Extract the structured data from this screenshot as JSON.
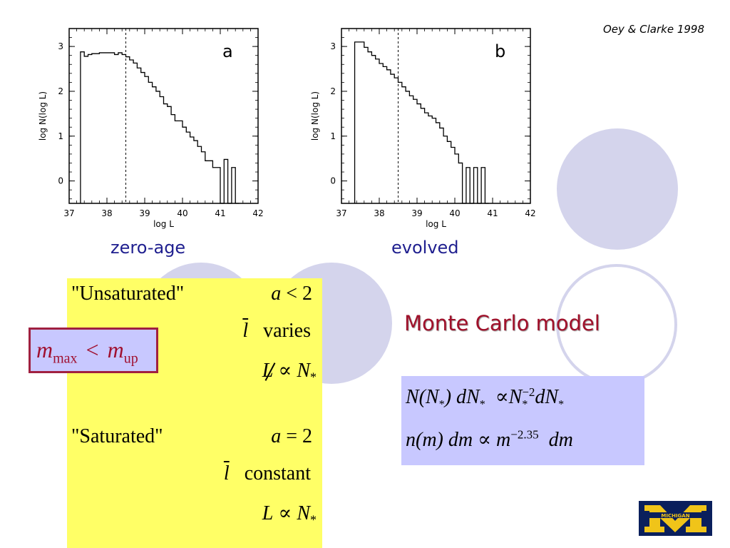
{
  "citation": "Oey & Clarke 1998",
  "chart_data": [
    {
      "type": "line",
      "panel_label": "a",
      "caption": "zero-age",
      "xlabel": "log L",
      "ylabel": "log N(log L)",
      "xlim": [
        37,
        42
      ],
      "ylim": [
        -0.5,
        3.4
      ],
      "xticks": [
        37,
        38,
        39,
        40,
        41,
        42
      ],
      "yticks": [
        0,
        1,
        2,
        3
      ],
      "grid": false,
      "reference_line_x": 38.5,
      "step_start": -0.5,
      "bins": [
        [
          37.3,
          2.88
        ],
        [
          37.4,
          2.78
        ],
        [
          37.5,
          2.82
        ],
        [
          37.6,
          2.84
        ],
        [
          37.7,
          2.84
        ],
        [
          37.8,
          2.86
        ],
        [
          37.9,
          2.86
        ],
        [
          38.0,
          2.86
        ],
        [
          38.1,
          2.86
        ],
        [
          38.2,
          2.82
        ],
        [
          38.3,
          2.86
        ],
        [
          38.4,
          2.82
        ],
        [
          38.5,
          2.77
        ],
        [
          38.6,
          2.7
        ],
        [
          38.7,
          2.63
        ],
        [
          38.8,
          2.52
        ],
        [
          38.9,
          2.42
        ],
        [
          39.0,
          2.33
        ],
        [
          39.1,
          2.2
        ],
        [
          39.2,
          2.1
        ],
        [
          39.3,
          2.0
        ],
        [
          39.4,
          1.88
        ],
        [
          39.5,
          1.72
        ],
        [
          39.6,
          1.66
        ],
        [
          39.7,
          1.48
        ],
        [
          39.8,
          1.34
        ],
        [
          39.9,
          1.34
        ],
        [
          40.0,
          1.2
        ],
        [
          40.1,
          1.09
        ],
        [
          40.2,
          0.98
        ],
        [
          40.3,
          0.9
        ],
        [
          40.4,
          0.77
        ],
        [
          40.5,
          0.65
        ],
        [
          40.6,
          0.45
        ],
        [
          40.7,
          0.45
        ],
        [
          40.8,
          0.3
        ],
        [
          40.9,
          0.3
        ],
        [
          41.0,
          -0.5
        ],
        [
          41.1,
          0.48
        ],
        [
          41.2,
          -0.5
        ],
        [
          41.3,
          0.3
        ],
        [
          41.4,
          -0.5
        ]
      ]
    },
    {
      "type": "line",
      "panel_label": "b",
      "caption": "evolved",
      "xlabel": "log L",
      "ylabel": "log N(log L)",
      "xlim": [
        37,
        42
      ],
      "ylim": [
        -0.5,
        3.4
      ],
      "xticks": [
        37,
        38,
        39,
        40,
        41,
        42
      ],
      "yticks": [
        0,
        1,
        2,
        3
      ],
      "grid": false,
      "reference_line_x": 38.5,
      "step_start": -0.5,
      "bins": [
        [
          37.35,
          3.1
        ],
        [
          37.6,
          2.98
        ],
        [
          37.7,
          2.88
        ],
        [
          37.8,
          2.8
        ],
        [
          37.9,
          2.72
        ],
        [
          38.0,
          2.62
        ],
        [
          38.1,
          2.55
        ],
        [
          38.2,
          2.48
        ],
        [
          38.3,
          2.38
        ],
        [
          38.4,
          2.3
        ],
        [
          38.5,
          2.2
        ],
        [
          38.6,
          2.1
        ],
        [
          38.7,
          2.0
        ],
        [
          38.8,
          1.9
        ],
        [
          38.9,
          1.82
        ],
        [
          39.0,
          1.72
        ],
        [
          39.1,
          1.62
        ],
        [
          39.2,
          1.52
        ],
        [
          39.3,
          1.45
        ],
        [
          39.4,
          1.4
        ],
        [
          39.5,
          1.3
        ],
        [
          39.6,
          1.18
        ],
        [
          39.7,
          1.0
        ],
        [
          39.8,
          0.88
        ],
        [
          39.9,
          0.75
        ],
        [
          40.0,
          0.6
        ],
        [
          40.1,
          0.4
        ],
        [
          40.2,
          -0.5
        ],
        [
          40.3,
          0.3
        ],
        [
          40.4,
          -0.5
        ],
        [
          40.5,
          0.3
        ],
        [
          40.6,
          -0.5
        ],
        [
          40.7,
          0.3
        ],
        [
          40.8,
          -0.5
        ]
      ]
    }
  ],
  "unsaturated": {
    "label": "\"Unsaturated\"",
    "a_lhs": "a",
    "a_op": "<",
    "a_rhs": "2",
    "lbar": "l",
    "lbar_text": "varies",
    "L": "L",
    "prop": "∝",
    "N": "N",
    "star": "*"
  },
  "saturated": {
    "label": "\"Saturated\"",
    "a_lhs": "a",
    "a_op": "=",
    "a_rhs": "2",
    "lbar": "l",
    "lbar_text": "constant",
    "L": "L",
    "prop": "∝",
    "N": "N",
    "star": "*"
  },
  "mmax_condition": {
    "m1": "m",
    "sub1": "max",
    "op": "<",
    "m2": "m",
    "sub2": "up"
  },
  "monte_carlo": {
    "title": "Monte Carlo model",
    "eq1": {
      "lhs": "N(N",
      "star": "*",
      "mid": ") dN",
      "prop": "∝N",
      "exp": "−2",
      "rhs": "dN"
    },
    "eq2": {
      "lhs": "n(m) dm",
      "prop": "∝",
      "m": "m",
      "exp": "−2.35",
      "rhs": "dm"
    }
  },
  "logo": {
    "text": "MICHIGAN",
    "bg_color": "#0a1f5c",
    "fg_color": "#f0c419"
  }
}
